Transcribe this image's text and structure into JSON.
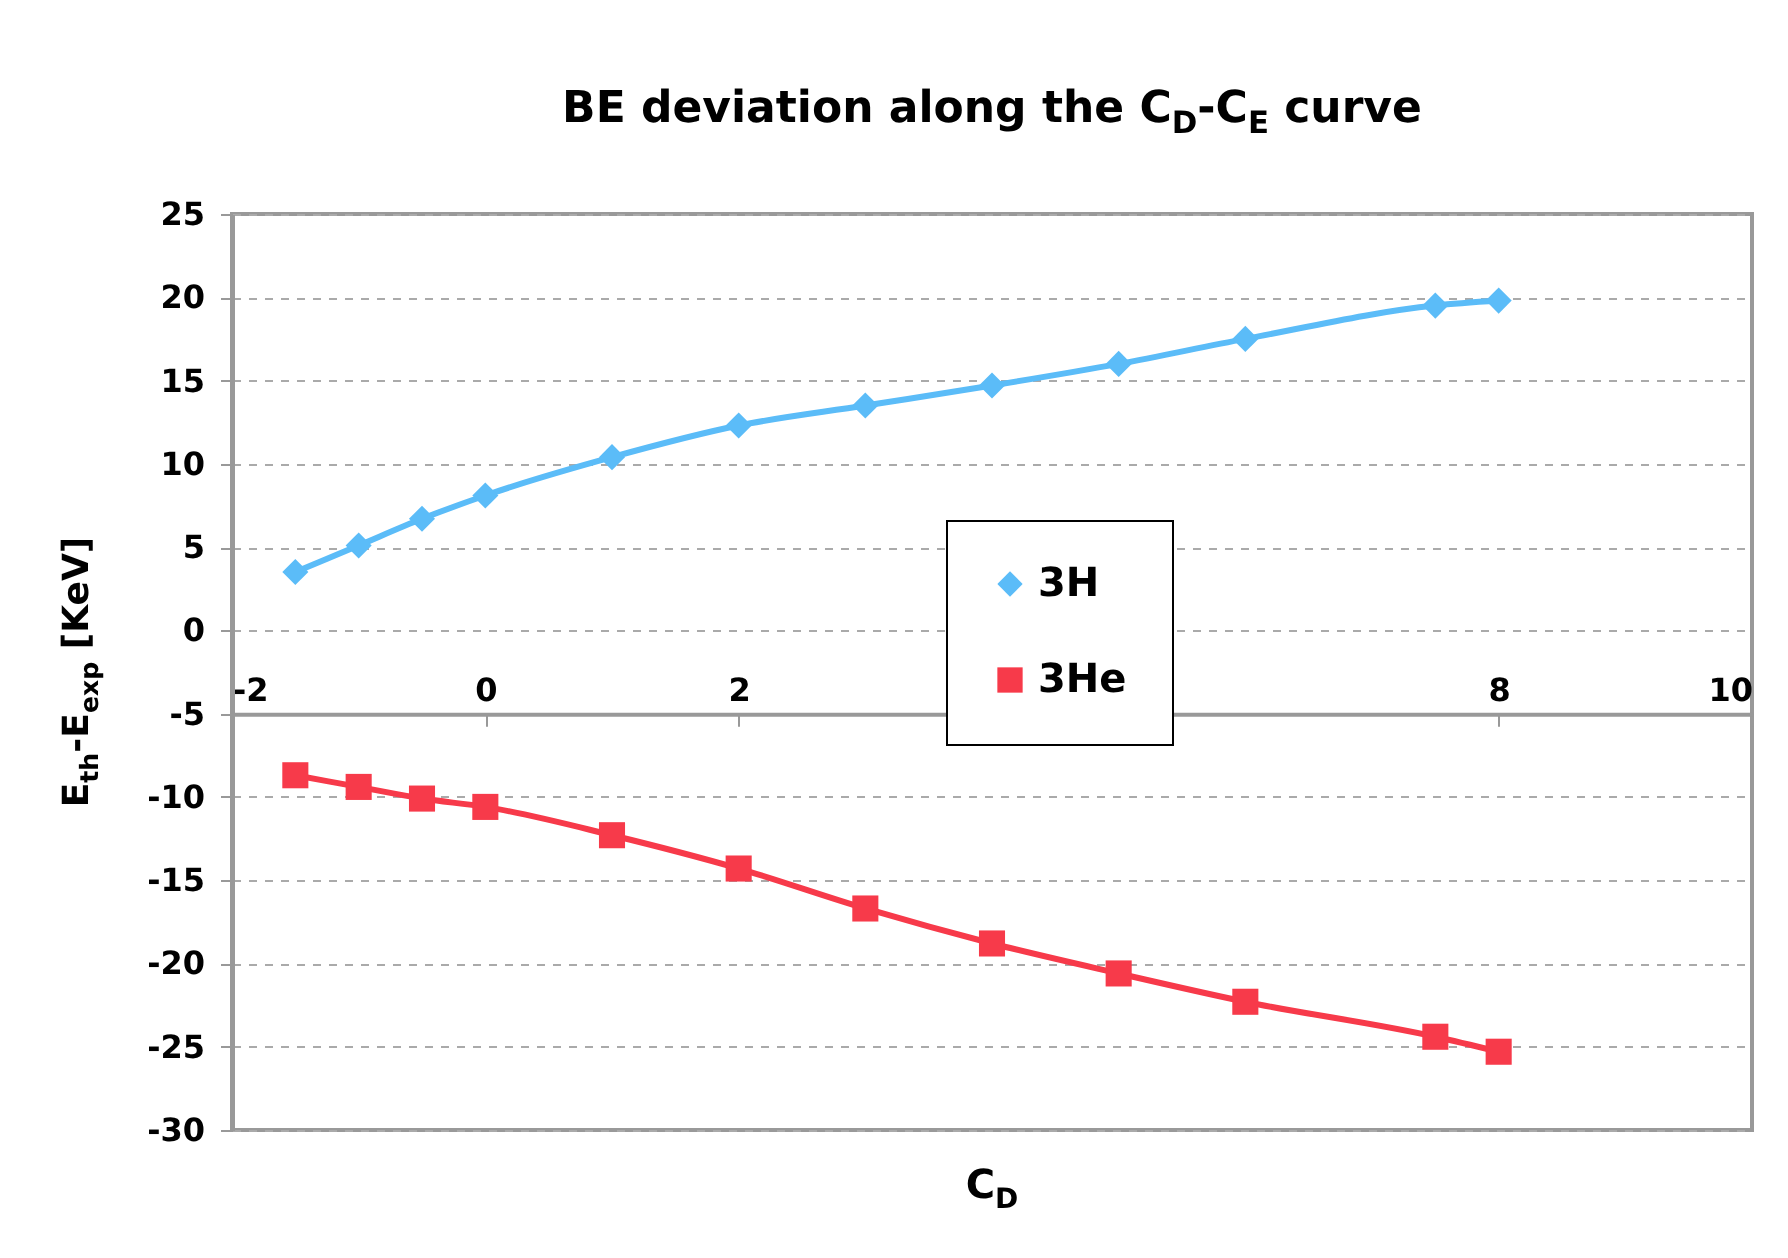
{
  "chart_data": {
    "type": "line",
    "title": "BE deviation along the C$_{D}$-C$_{E}$ curve",
    "xlabel": "C$_{D}$",
    "ylabel": "E$_{th}$-E$_{exp}$ [KeV]",
    "x": [
      -1.5,
      -1,
      -0.5,
      0,
      1,
      2,
      3,
      4,
      5,
      6,
      7.5,
      8
    ],
    "series": [
      {
        "name": "3H",
        "color": "#5bbcf8",
        "marker": "diamond",
        "values": [
          3.5,
          5.1,
          6.7,
          8.1,
          10.4,
          12.3,
          13.5,
          14.7,
          16.0,
          17.5,
          19.5,
          19.8
        ]
      },
      {
        "name": "3He",
        "color": "#f73a4a",
        "marker": "square",
        "values": [
          -8.7,
          -9.4,
          -10.1,
          -10.6,
          -12.3,
          -14.3,
          -16.7,
          -18.8,
          -20.6,
          -22.3,
          -24.4,
          -25.3
        ]
      }
    ],
    "xlim": [
      -2,
      10
    ],
    "xticks": [
      -2,
      0,
      2,
      8,
      10
    ],
    "ylim": [
      -30,
      25
    ],
    "yticks": [
      -30,
      -25,
      -20,
      -15,
      -10,
      -5,
      0,
      5,
      10,
      15,
      20,
      25
    ],
    "grid": "y",
    "legend": "center",
    "line_style": "solid"
  }
}
